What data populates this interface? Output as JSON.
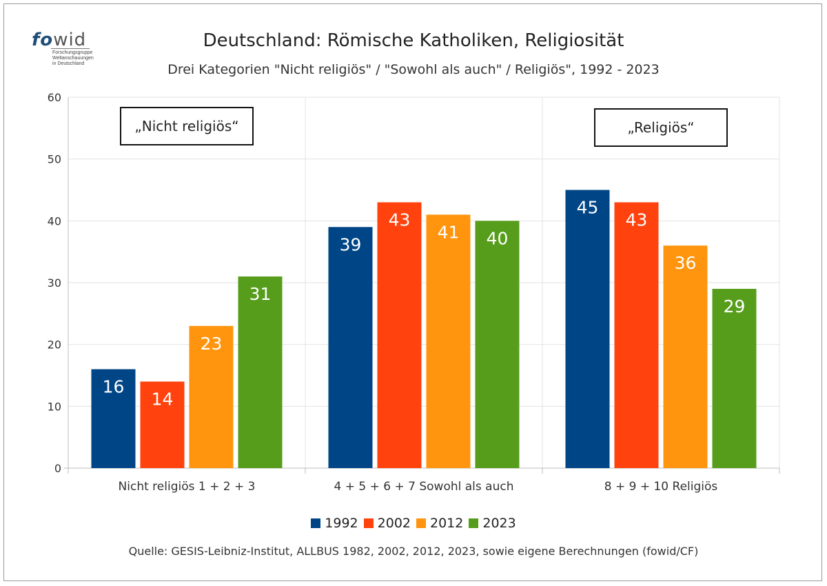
{
  "logo": {
    "fo": "fo",
    "wid": "wid",
    "lines": [
      "Forschungsgruppe",
      "Weltanschauungen",
      "in Deutschland"
    ]
  },
  "header": {
    "title": "Deutschland: Römische Katholiken, Religiosität",
    "subtitle": "Drei Kategorien \"Nicht religiös\" / \"Sowohl als auch\" / Religiös\", 1992 - 2023"
  },
  "source": "Quelle: GESIS-Leibniz-Institut, ALLBUS 1982, 2002, 2012, 2023, sowie eigene Berechnungen (fowid/CF)",
  "chart_data": {
    "type": "bar",
    "categories": [
      "Nicht religiös 1 + 2 + 3",
      "4 + 5 + 6 + 7 Sowohl als auch",
      "8 + 9 + 10 Religiös"
    ],
    "series": [
      {
        "name": "1992",
        "color": "#004586",
        "values": [
          16,
          39,
          45
        ]
      },
      {
        "name": "2002",
        "color": "#ff420e",
        "values": [
          14,
          43,
          43
        ]
      },
      {
        "name": "2012",
        "color": "#ff950e",
        "values": [
          23,
          41,
          36
        ]
      },
      {
        "name": "2023",
        "color": "#579d1c",
        "values": [
          31,
          40,
          29
        ]
      }
    ],
    "ylim": [
      0,
      60
    ],
    "yticks": [
      0,
      10,
      20,
      30,
      40,
      50,
      60
    ],
    "grid": true,
    "legend": "bottom",
    "annotations": [
      {
        "text": "„Nicht religiös“",
        "category": 0
      },
      {
        "text": "„Religiös“",
        "category": 2
      }
    ]
  }
}
